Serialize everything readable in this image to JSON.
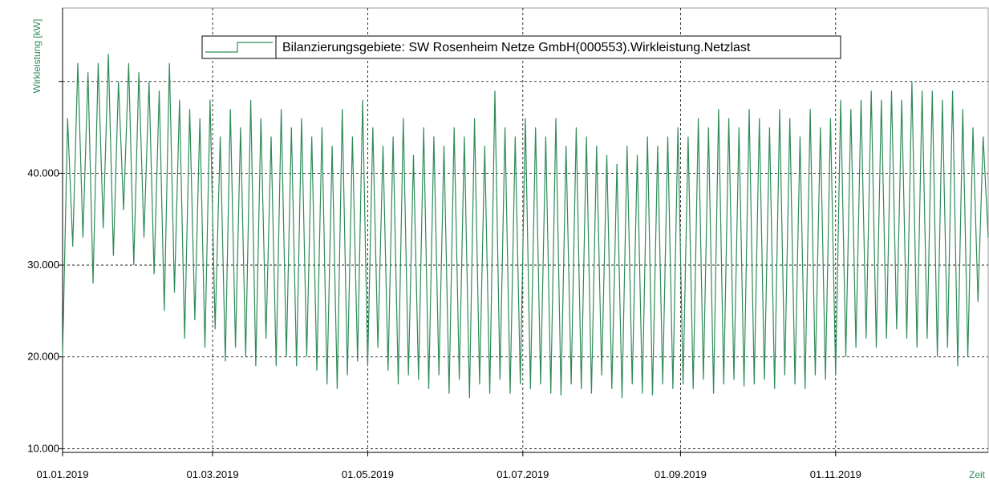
{
  "chart_data": {
    "type": "line",
    "y_label": "Wirkleistung [kW]",
    "x_label": "Zeit",
    "legend_position": "top",
    "grid": true,
    "xlim": [
      "01.01.2019",
      "31.12.2019"
    ],
    "xticks": [
      "01.01.2019",
      "01.03.2019",
      "01.05.2019",
      "01.07.2019",
      "01.09.2019",
      "01.11.2019"
    ],
    "ylim": [
      9600,
      58000
    ],
    "yticks": [
      {
        "value": 10000,
        "label": "10.000"
      },
      {
        "value": 20000,
        "label": "20.000"
      },
      {
        "value": 30000,
        "label": "30.000"
      },
      {
        "value": 40000,
        "label": "40.000"
      },
      {
        "value": 50000,
        "label": null
      }
    ],
    "x": [
      "01.01.2019",
      "03.01.2019",
      "05.01.2019",
      "07.01.2019",
      "09.01.2019",
      "11.01.2019",
      "13.01.2019",
      "15.01.2019",
      "17.01.2019",
      "19.01.2019",
      "21.01.2019",
      "23.01.2019",
      "25.01.2019",
      "27.01.2019",
      "29.01.2019",
      "31.01.2019",
      "02.02.2019",
      "04.02.2019",
      "06.02.2019",
      "08.02.2019",
      "10.02.2019",
      "12.02.2019",
      "14.02.2019",
      "16.02.2019",
      "18.02.2019",
      "20.02.2019",
      "22.02.2019",
      "24.02.2019",
      "26.02.2019",
      "28.02.2019",
      "02.03.2019",
      "04.03.2019",
      "06.03.2019",
      "08.03.2019",
      "10.03.2019",
      "12.03.2019",
      "14.03.2019",
      "16.03.2019",
      "18.03.2019",
      "20.03.2019",
      "22.03.2019",
      "24.03.2019",
      "26.03.2019",
      "28.03.2019",
      "30.03.2019",
      "01.04.2019",
      "03.04.2019",
      "05.04.2019",
      "07.04.2019",
      "09.04.2019",
      "11.04.2019",
      "13.04.2019",
      "15.04.2019",
      "17.04.2019",
      "19.04.2019",
      "21.04.2019",
      "23.04.2019",
      "25.04.2019",
      "27.04.2019",
      "29.04.2019",
      "01.05.2019",
      "03.05.2019",
      "05.05.2019",
      "07.05.2019",
      "09.05.2019",
      "11.05.2019",
      "13.05.2019",
      "15.05.2019",
      "17.05.2019",
      "19.05.2019",
      "21.05.2019",
      "23.05.2019",
      "25.05.2019",
      "27.05.2019",
      "29.05.2019",
      "31.05.2019",
      "02.06.2019",
      "04.06.2019",
      "06.06.2019",
      "08.06.2019",
      "10.06.2019",
      "12.06.2019",
      "14.06.2019",
      "16.06.2019",
      "18.06.2019",
      "20.06.2019",
      "22.06.2019",
      "24.06.2019",
      "26.06.2019",
      "28.06.2019",
      "30.06.2019",
      "02.07.2019",
      "04.07.2019",
      "06.07.2019",
      "08.07.2019",
      "10.07.2019",
      "12.07.2019",
      "14.07.2019",
      "16.07.2019",
      "18.07.2019",
      "20.07.2019",
      "22.07.2019",
      "24.07.2019",
      "26.07.2019",
      "28.07.2019",
      "30.07.2019",
      "01.08.2019",
      "03.08.2019",
      "05.08.2019",
      "07.08.2019",
      "09.08.2019",
      "11.08.2019",
      "13.08.2019",
      "15.08.2019",
      "17.08.2019",
      "19.08.2019",
      "21.08.2019",
      "23.08.2019",
      "25.08.2019",
      "27.08.2019",
      "29.08.2019",
      "31.08.2019",
      "02.09.2019",
      "04.09.2019",
      "06.09.2019",
      "08.09.2019",
      "10.09.2019",
      "12.09.2019",
      "14.09.2019",
      "16.09.2019",
      "18.09.2019",
      "20.09.2019",
      "22.09.2019",
      "24.09.2019",
      "26.09.2019",
      "28.09.2019",
      "30.09.2019",
      "02.10.2019",
      "04.10.2019",
      "06.10.2019",
      "08.10.2019",
      "10.10.2019",
      "12.10.2019",
      "14.10.2019",
      "16.10.2019",
      "18.10.2019",
      "20.10.2019",
      "22.10.2019",
      "24.10.2019",
      "26.10.2019",
      "28.10.2019",
      "30.10.2019",
      "01.11.2019",
      "03.11.2019",
      "05.11.2019",
      "07.11.2019",
      "09.11.2019",
      "11.11.2019",
      "13.11.2019",
      "15.11.2019",
      "17.11.2019",
      "19.11.2019",
      "21.11.2019",
      "23.11.2019",
      "25.11.2019",
      "27.11.2019",
      "29.11.2019",
      "01.12.2019",
      "03.12.2019",
      "05.12.2019",
      "07.12.2019",
      "09.12.2019",
      "11.12.2019",
      "13.12.2019",
      "15.12.2019",
      "17.12.2019",
      "19.12.2019",
      "21.12.2019",
      "23.12.2019",
      "25.12.2019",
      "27.12.2019",
      "29.12.2019",
      "31.12.2019"
    ],
    "series": [
      {
        "name": "Bilanzierungsgebiete: SW Rosenheim Netze GmbH(000553).Wirkleistung.Netzlast",
        "color": "#2e8b57",
        "values": [
          20000,
          46000,
          32000,
          52000,
          33000,
          51000,
          28000,
          52000,
          34000,
          53000,
          31000,
          50000,
          36000,
          52000,
          30000,
          51000,
          33000,
          50000,
          29000,
          49000,
          25000,
          52000,
          27000,
          48000,
          22000,
          47000,
          24000,
          46000,
          21000,
          48000,
          23000,
          44000,
          19500,
          47000,
          21000,
          45000,
          20000,
          48000,
          19000,
          46000,
          22000,
          44000,
          19000,
          47000,
          20000,
          45000,
          19000,
          46000,
          20000,
          44000,
          18500,
          45000,
          17000,
          43000,
          16500,
          47000,
          18000,
          44000,
          19500,
          48000,
          19000,
          45000,
          21000,
          43000,
          18500,
          44000,
          17000,
          46000,
          18000,
          42000,
          17500,
          45000,
          16500,
          44000,
          18000,
          43000,
          16000,
          45000,
          17500,
          44000,
          15500,
          46000,
          17000,
          43000,
          16000,
          49000,
          17500,
          45000,
          16000,
          44000,
          17000,
          46000,
          16500,
          45000,
          17000,
          44000,
          16000,
          46000,
          15800,
          43000,
          17000,
          45000,
          16500,
          44000,
          16000,
          43000,
          18000,
          42000,
          16500,
          41000,
          15500,
          43000,
          17000,
          42000,
          16000,
          44000,
          15800,
          43000,
          17000,
          44000,
          16500,
          45000,
          17000,
          44000,
          16500,
          46000,
          17500,
          45000,
          16000,
          47000,
          17000,
          46000,
          17500,
          45000,
          16800,
          47000,
          17000,
          46000,
          17500,
          45000,
          16500,
          47000,
          18000,
          46000,
          17000,
          44000,
          16500,
          47000,
          18000,
          45000,
          17500,
          46000,
          18000,
          48000,
          20000,
          47000,
          21000,
          48000,
          22000,
          49000,
          21000,
          48000,
          22000,
          49000,
          23000,
          48000,
          22000,
          50000,
          21000,
          49000,
          22000,
          49000,
          20000,
          48000,
          21000,
          49000,
          19000,
          47000,
          20000,
          45000,
          26000,
          44000,
          33000
        ]
      }
    ]
  }
}
